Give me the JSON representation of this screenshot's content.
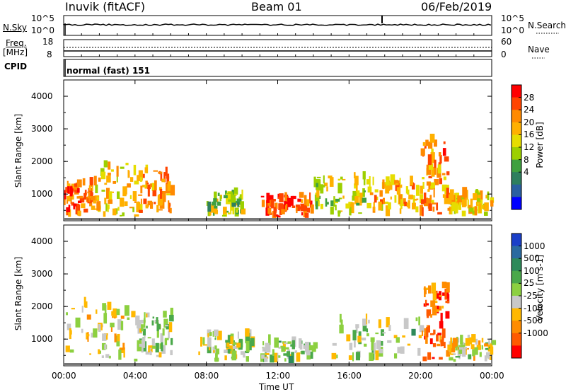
{
  "header": {
    "station": "Inuvik (fitACF)",
    "beam": "Beam 01",
    "date": "06/Feb/2019"
  },
  "top_panels": {
    "nsky": {
      "label": "N.Sky",
      "left_ticks": [
        "10^5",
        "10^0"
      ],
      "right_ticks": [
        "10^5",
        "10^0"
      ],
      "right_label": "N.Search"
    },
    "freq": {
      "label_lines": [
        "Freq.",
        "[MHz]"
      ],
      "left_ticks": [
        "18",
        "8"
      ],
      "right_ticks": [
        "60",
        "0"
      ],
      "right_label": "Nave"
    },
    "cpid": {
      "label": "CPID",
      "mode": "normal (fast) 151"
    }
  },
  "colorbars": {
    "power": {
      "label": "Power [dB]",
      "ticks": [
        "28",
        "24",
        "20",
        "16",
        "12",
        "8",
        "4"
      ],
      "colors": [
        "#ff0000",
        "#ff4400",
        "#ff8a00",
        "#ffb000",
        "#e6dd00",
        "#9ccf00",
        "#3fa03f",
        "#2e7f5e",
        "#2a5fa0",
        "#0000ff"
      ]
    },
    "velocity": {
      "label": "Velocity [m s-1]",
      "ticks": [
        "1000",
        "500",
        "100",
        "25",
        "-25",
        "-100",
        "-500",
        "-1000"
      ],
      "colors": [
        "#1a3fc8",
        "#2a6aa0",
        "#2e8a5a",
        "#4aa84a",
        "#8cd040",
        "#c8c8c8",
        "#ffb800",
        "#ff8c00",
        "#ff5a00",
        "#ff0000"
      ]
    }
  },
  "x_axis": {
    "label": "Time UT",
    "ticks": [
      "00:00",
      "04:00",
      "08:00",
      "12:00",
      "16:00",
      "20:00",
      "00:00"
    ]
  },
  "chart_data": [
    {
      "type": "heatmap",
      "title": "Inuvik (fitACF) Beam 01 06/Feb/2019",
      "quantity": "Power",
      "xlabel": "Time UT",
      "ylabel": "Slant Range [km]",
      "xlim_hours": [
        0,
        24
      ],
      "ylim": [
        180,
        4500
      ],
      "yticks": [
        1000,
        2000,
        3000,
        4000
      ],
      "color_range": [
        0,
        30
      ],
      "color_unit": "dB",
      "echo_regions": [
        {
          "t_start": 0.0,
          "t_end": 1.5,
          "r_min": 300,
          "r_max": 1300,
          "value": 24
        },
        {
          "t_start": 1.5,
          "t_end": 4.0,
          "r_min": 300,
          "r_max": 1900,
          "value": 18
        },
        {
          "t_start": 4.0,
          "t_end": 6.0,
          "r_min": 400,
          "r_max": 1700,
          "value": 22
        },
        {
          "t_start": 8.0,
          "t_end": 10.0,
          "r_min": 300,
          "r_max": 1000,
          "value": 14
        },
        {
          "t_start": 11.0,
          "t_end": 14.0,
          "r_min": 250,
          "r_max": 900,
          "value": 26
        },
        {
          "t_start": 14.0,
          "t_end": 17.0,
          "r_min": 300,
          "r_max": 1500,
          "value": 16
        },
        {
          "t_start": 17.0,
          "t_end": 20.0,
          "r_min": 300,
          "r_max": 1300,
          "value": 20
        },
        {
          "t_start": 20.0,
          "t_end": 21.5,
          "r_min": 300,
          "r_max": 2600,
          "value": 22
        },
        {
          "t_start": 21.5,
          "t_end": 24.0,
          "r_min": 300,
          "r_max": 900,
          "value": 18
        }
      ]
    },
    {
      "type": "heatmap",
      "title": "Inuvik (fitACF) Beam 01 06/Feb/2019",
      "quantity": "Velocity",
      "xlabel": "Time UT",
      "ylabel": "Slant Range [km]",
      "xlim_hours": [
        0,
        24
      ],
      "ylim": [
        180,
        4500
      ],
      "yticks": [
        1000,
        2000,
        3000,
        4000
      ],
      "color_range": [
        -1000,
        1000
      ],
      "color_unit": "m s-1",
      "echo_regions": [
        {
          "t_start": 0.0,
          "t_end": 4.0,
          "r_min": 300,
          "r_max": 2000,
          "value": -150
        },
        {
          "t_start": 4.0,
          "t_end": 6.0,
          "r_min": 400,
          "r_max": 1700,
          "value": 50
        },
        {
          "t_start": 7.5,
          "t_end": 10.5,
          "r_min": 300,
          "r_max": 1100,
          "value": 0
        },
        {
          "t_start": 11.0,
          "t_end": 14.0,
          "r_min": 250,
          "r_max": 900,
          "value": 80
        },
        {
          "t_start": 15.0,
          "t_end": 20.0,
          "r_min": 300,
          "r_max": 1600,
          "value": 60
        },
        {
          "t_start": 20.0,
          "t_end": 21.5,
          "r_min": 300,
          "r_max": 2600,
          "value": -600
        },
        {
          "t_start": 21.5,
          "t_end": 24.0,
          "r_min": 300,
          "r_max": 900,
          "value": -120
        }
      ]
    }
  ]
}
